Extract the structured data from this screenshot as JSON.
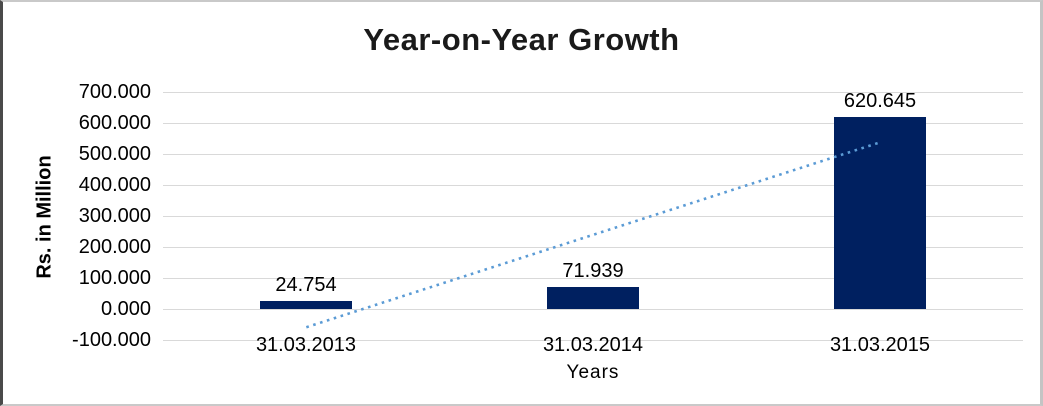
{
  "chart_data": {
    "type": "bar",
    "title": "Year-on-Year Growth",
    "xlabel": "Years",
    "ylabel": "Rs. in Million",
    "categories": [
      "31.03.2013",
      "31.03.2014",
      "31.03.2015"
    ],
    "values": [
      24.754,
      71.939,
      620.645
    ],
    "data_labels": [
      "24.754",
      "71.939",
      "620.645"
    ],
    "ylim": [
      -100,
      700
    ],
    "ytick_step": 100,
    "ytick_labels": [
      "700.000",
      "600.000",
      "500.000",
      "400.000",
      "300.000",
      "200.000",
      "100.000",
      "0.000",
      "-100.000"
    ],
    "grid": true,
    "legend": false,
    "colors": {
      "bar": "#002060",
      "trendline": "#5B9BD5",
      "gridline": "#D9D9D9",
      "text": "#000000",
      "background": "#FFFFFF"
    },
    "trendline": {
      "type": "linear",
      "style": "dotted",
      "start_value": -58.8,
      "end_value": 537.2
    }
  }
}
